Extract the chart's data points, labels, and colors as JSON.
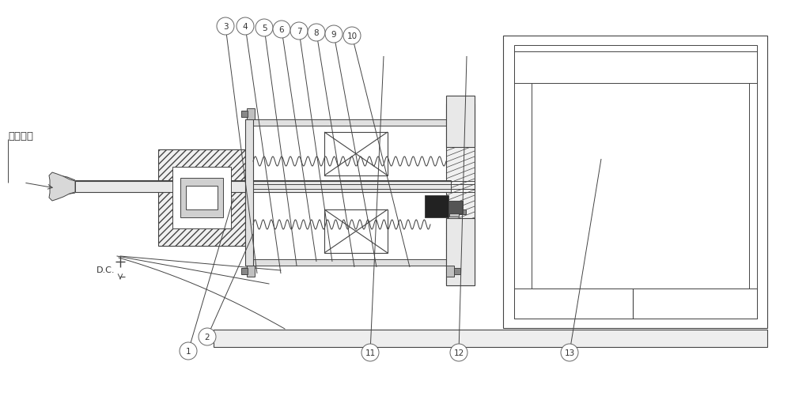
{
  "bg_color": "#ffffff",
  "lc": "#444444",
  "lw": 0.8,
  "shaft_label": "旋转轴系",
  "dc_label": "D.C.",
  "label_positions": [
    [
      "1",
      238,
      57,
      295,
      250
    ],
    [
      "2",
      262,
      75,
      320,
      205
    ],
    [
      "3",
      285,
      468,
      325,
      155
    ],
    [
      "4",
      310,
      468,
      355,
      155
    ],
    [
      "5",
      334,
      466,
      375,
      165
    ],
    [
      "6",
      356,
      464,
      400,
      170
    ],
    [
      "7",
      378,
      462,
      420,
      170
    ],
    [
      "8",
      400,
      460,
      448,
      163
    ],
    [
      "9",
      422,
      458,
      476,
      163
    ],
    [
      "10",
      445,
      456,
      518,
      163
    ],
    [
      "11",
      468,
      55,
      485,
      430
    ],
    [
      "12",
      580,
      55,
      590,
      430
    ],
    [
      "13",
      720,
      55,
      760,
      300
    ]
  ]
}
